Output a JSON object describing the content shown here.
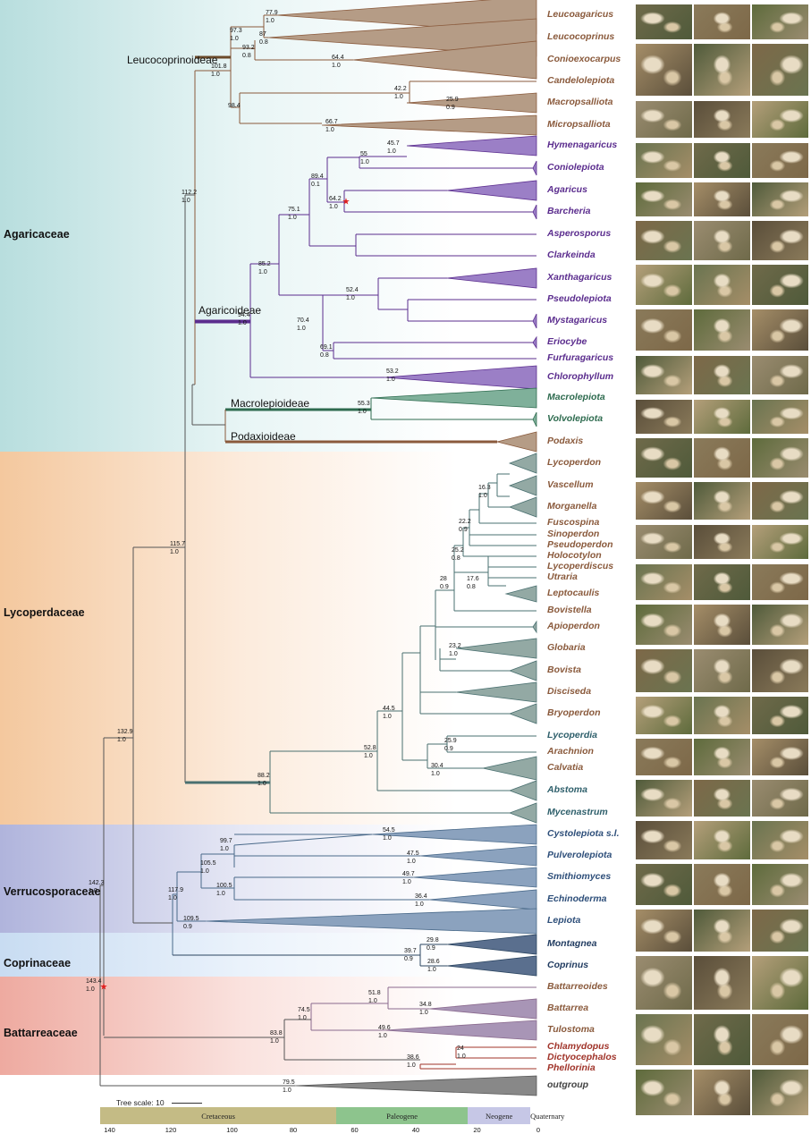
{
  "families": [
    {
      "name": "Agaricaceae",
      "color": "#b8dede",
      "color2": "#e8f5f5"
    },
    {
      "name": "Lycoperdaceae",
      "color": "#f4c89e",
      "color2": "#fcebdc"
    },
    {
      "name": "Verrucosporaceae",
      "color": "#b0b4dc",
      "color2": "#e6e8f5"
    },
    {
      "name": "Coprinaceae",
      "color": "#c8dcf2",
      "color2": "#eaf2fb"
    },
    {
      "name": "Battarreaceae",
      "color": "#eeaaa0",
      "color2": "#fae2de"
    }
  ],
  "subfamilies": [
    "Leucocoprinoideae",
    "Agaricoideae",
    "Macrolepioideae",
    "Podaxioideae"
  ],
  "genera": [
    {
      "name": "Leucoagaricus",
      "color": "#8a5a3c"
    },
    {
      "name": "Leucocoprinus",
      "color": "#8a5a3c"
    },
    {
      "name": "Conioexocarpus",
      "color": "#8a5a3c"
    },
    {
      "name": "Candelolepiota",
      "color": "#8a5a3c"
    },
    {
      "name": "Macropsalliota",
      "color": "#8a5a3c"
    },
    {
      "name": "Micropsalliota",
      "color": "#8a5a3c"
    },
    {
      "name": "Hymenagaricus",
      "color": "#5b2d8e"
    },
    {
      "name": "Coniolepiota",
      "color": "#5b2d8e"
    },
    {
      "name": "Agaricus",
      "color": "#5b2d8e"
    },
    {
      "name": "Barcheria",
      "color": "#5b2d8e"
    },
    {
      "name": "Asperosporus",
      "color": "#5b2d8e"
    },
    {
      "name": "Clarkeinda",
      "color": "#5b2d8e"
    },
    {
      "name": "Xanthagaricus",
      "color": "#5b2d8e"
    },
    {
      "name": "Pseudolepiota",
      "color": "#5b2d8e"
    },
    {
      "name": "Mystagaricus",
      "color": "#5b2d8e"
    },
    {
      "name": "Eriocybe",
      "color": "#5b2d8e"
    },
    {
      "name": "Furfuragaricus",
      "color": "#5b2d8e"
    },
    {
      "name": "Chlorophyllum",
      "color": "#5b2d8e"
    },
    {
      "name": "Macrolepiota",
      "color": "#2e6b4f"
    },
    {
      "name": "Volvolepiota",
      "color": "#2e6b4f"
    },
    {
      "name": "Podaxis",
      "color": "#8a5a3c"
    },
    {
      "name": "Lycoperdon",
      "color": "#8a5a3c"
    },
    {
      "name": "Vascellum",
      "color": "#8a5a3c"
    },
    {
      "name": "Morganella",
      "color": "#8a5a3c"
    },
    {
      "name": "Fuscospina",
      "color": "#8a5a3c"
    },
    {
      "name": "Sinoperdon",
      "color": "#8a5a3c"
    },
    {
      "name": "Pseudoperdon",
      "color": "#8a5a3c"
    },
    {
      "name": "Holocotylon",
      "color": "#8a5a3c"
    },
    {
      "name": "Lycoperdiscus",
      "color": "#8a5a3c"
    },
    {
      "name": "Utraria",
      "color": "#8a5a3c"
    },
    {
      "name": "Leptocaulis",
      "color": "#8a5a3c"
    },
    {
      "name": "Bovistella",
      "color": "#8a5a3c"
    },
    {
      "name": "Apioperdon",
      "color": "#8a5a3c"
    },
    {
      "name": "Globaria",
      "color": "#8a5a3c"
    },
    {
      "name": "Bovista",
      "color": "#8a5a3c"
    },
    {
      "name": "Disciseda",
      "color": "#8a5a3c"
    },
    {
      "name": "Bryoperdon",
      "color": "#8a5a3c"
    },
    {
      "name": "Lycoperdia",
      "color": "#2e5f6b"
    },
    {
      "name": "Arachnion",
      "color": "#8a5a3c"
    },
    {
      "name": "Calvatia",
      "color": "#8a5a3c"
    },
    {
      "name": "Abstoma",
      "color": "#2e5f6b"
    },
    {
      "name": "Mycenastrum",
      "color": "#2e5f6b"
    },
    {
      "name": "Cystolepiota s.l.",
      "color": "#2e4f7a"
    },
    {
      "name": "Pulverolepiota",
      "color": "#2e4f7a"
    },
    {
      "name": "Smithiomyces",
      "color": "#2e4f7a"
    },
    {
      "name": "Echinoderma",
      "color": "#2e4f7a"
    },
    {
      "name": "Lepiota",
      "color": "#2e4f7a"
    },
    {
      "name": "Montagnea",
      "color": "#1f3a5f"
    },
    {
      "name": "Coprinus",
      "color": "#1f3a5f"
    },
    {
      "name": "Battarreoides",
      "color": "#8a5a3c"
    },
    {
      "name": "Battarrea",
      "color": "#8a5a3c"
    },
    {
      "name": "Tulostoma",
      "color": "#8a5a3c"
    },
    {
      "name": "Chlamydopus",
      "color": "#a0342a"
    },
    {
      "name": "Dictyocephalos",
      "color": "#a0342a"
    },
    {
      "name": "Phellorinia",
      "color": "#a0342a"
    },
    {
      "name": "outgroup",
      "color": "#444444"
    }
  ],
  "node_labels": [
    {
      "age": "77.9",
      "support": "1.0"
    },
    {
      "age": "97.3",
      "support": "1.0"
    },
    {
      "age": "87",
      "support": "0.8"
    },
    {
      "age": "93.2",
      "support": "0.8"
    },
    {
      "age": "64.4",
      "support": "1.0"
    },
    {
      "age": "101.8",
      "support": "1.0"
    },
    {
      "age": "42.2",
      "support": "1.0"
    },
    {
      "age": "25.9",
      "support": "0.9"
    },
    {
      "age": "98.4",
      "support": ""
    },
    {
      "age": "66.7",
      "support": "1.0"
    },
    {
      "age": "45.7",
      "support": "1.0"
    },
    {
      "age": "55",
      "support": "1.0"
    },
    {
      "age": "89.4",
      "support": "0.1"
    },
    {
      "age": "64.2",
      "support": "1.0"
    },
    {
      "age": "75.1",
      "support": "1.0"
    },
    {
      "age": "112.2",
      "support": "1.0"
    },
    {
      "age": "85.2",
      "support": "1.0"
    },
    {
      "age": "52.4",
      "support": "1.0"
    },
    {
      "age": "94.4",
      "support": "1.0"
    },
    {
      "age": "70.4",
      "support": "1.0"
    },
    {
      "age": "69.1",
      "support": "0.8"
    },
    {
      "age": "53.2",
      "support": "1.0"
    },
    {
      "age": "55.3",
      "support": "1.0"
    },
    {
      "age": "16.3",
      "support": "1.0"
    },
    {
      "age": "22.2",
      "support": "0.9"
    },
    {
      "age": "25.2",
      "support": "0.8"
    },
    {
      "age": "28",
      "support": "0.9"
    },
    {
      "age": "17.6",
      "support": "0.8"
    },
    {
      "age": "115.7",
      "support": "1.0"
    },
    {
      "age": "23.2",
      "support": "1.0"
    },
    {
      "age": "44.5",
      "support": "1.0"
    },
    {
      "age": "25.9",
      "support": "0.9"
    },
    {
      "age": "52.8",
      "support": "1.0"
    },
    {
      "age": "30.4",
      "support": "1.0"
    },
    {
      "age": "88.2",
      "support": "1.0"
    },
    {
      "age": "132.9",
      "support": "1.0"
    },
    {
      "age": "54.5",
      "support": "1.0"
    },
    {
      "age": "99.7",
      "support": "1.0"
    },
    {
      "age": "105.5",
      "support": "1.0"
    },
    {
      "age": "47.5",
      "support": "1.0"
    },
    {
      "age": "117.9",
      "support": "1.0"
    },
    {
      "age": "49.7",
      "support": "1.0"
    },
    {
      "age": "100.5",
      "support": "1.0"
    },
    {
      "age": "36.4",
      "support": "1.0"
    },
    {
      "age": "109.5",
      "support": "0.9"
    },
    {
      "age": "142.3",
      "support": "1.0"
    },
    {
      "age": "29.8",
      "support": "0.9"
    },
    {
      "age": "39.7",
      "support": "0.9"
    },
    {
      "age": "28.6",
      "support": "1.0"
    },
    {
      "age": "143.4",
      "support": "1.0"
    },
    {
      "age": "51.8",
      "support": "1.0"
    },
    {
      "age": "74.5",
      "support": "1.0"
    },
    {
      "age": "34.8",
      "support": "1.0"
    },
    {
      "age": "83.8",
      "support": "1.0"
    },
    {
      "age": "49.6",
      "support": "1.0"
    },
    {
      "age": "24",
      "support": "1.0"
    },
    {
      "age": "38.6",
      "support": "1.0"
    },
    {
      "age": "79.5",
      "support": "1.0"
    }
  ],
  "tree_scale": "Tree scale: 10",
  "eras": [
    {
      "name": "Cretaceous",
      "color": "#c4bb85"
    },
    {
      "name": "Paleogene",
      "color": "#8dc48d"
    },
    {
      "name": "Neogene",
      "color": "#c6c7e6"
    },
    {
      "name": "Quaternary",
      "color": "#ffffff"
    }
  ],
  "axis_ticks": [
    "140",
    "120",
    "100",
    "80",
    "60",
    "40",
    "20",
    "0"
  ],
  "photo_palette": [
    "#6f6a4a",
    "#8a7a5a",
    "#5e6b3c",
    "#a58e68",
    "#4f5a3a",
    "#7d6848",
    "#9a8c70",
    "#5a4e3a",
    "#b49f7a",
    "#6a7450"
  ]
}
